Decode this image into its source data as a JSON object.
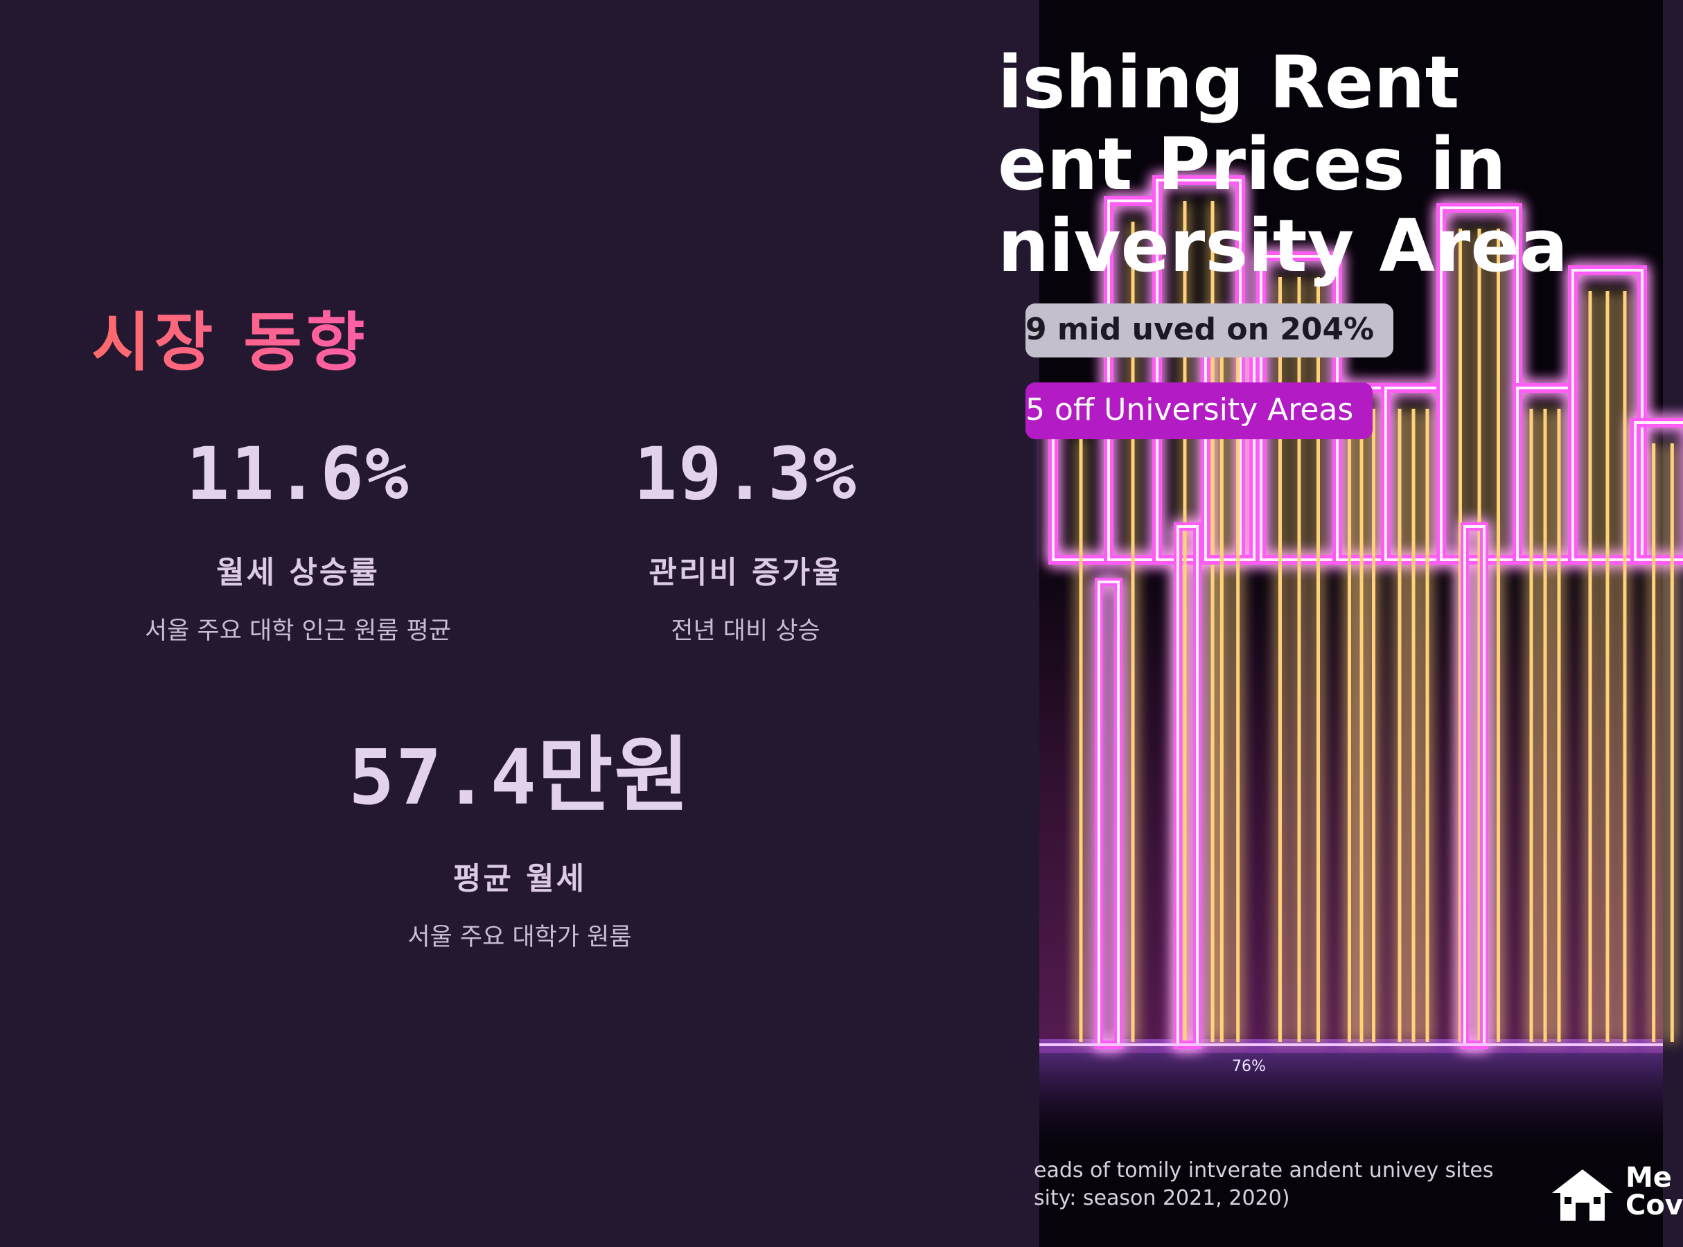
{
  "section_title": "시장 동향",
  "stats": [
    {
      "value": "11.6%",
      "label": "월세 상승률",
      "desc": "서울 주요 대학 인근 원룸 평균"
    },
    {
      "value": "19.3%",
      "label": "관리비 증가율",
      "desc": "전년 대비 상승"
    },
    {
      "value_number": "57.4",
      "value_unit": "만원",
      "label": "평균 월세",
      "desc": "서울 주요 대학가 원룸"
    }
  ],
  "image": {
    "title_lines": [
      "ishing Rent",
      "ent Prices in",
      "niversity Area"
    ],
    "pill_gray": "9 mid uved on 204%",
    "pill_purple": "5 off University Areas",
    "bar_label": "76%",
    "caption_lines": [
      "eads of tomily intverate andent univey sites",
      "sity: season 2021, 2020)"
    ],
    "logo_lines": [
      "Me",
      "Cov"
    ],
    "colors": {
      "glow": "#ff5cf5",
      "core": "#fff0ff",
      "filament": "#ffd27a"
    }
  }
}
